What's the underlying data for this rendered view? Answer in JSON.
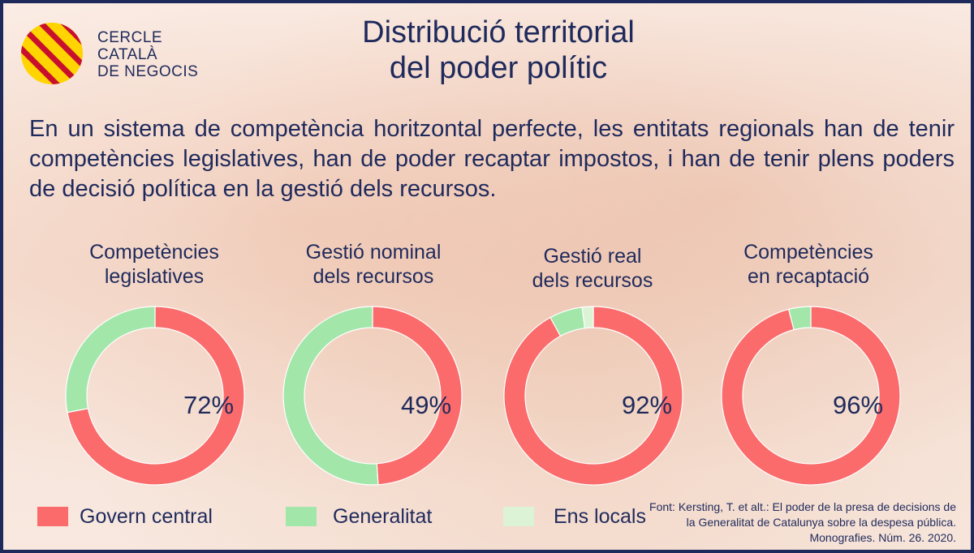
{
  "logo": {
    "lines": [
      "CERCLE",
      "CATALÀ",
      "DE NEGOCIS"
    ]
  },
  "title": {
    "line1": "Distribució territorial",
    "line2": "del poder polític"
  },
  "intro": "En un sistema de competència horitzontal perfecte, les entitats regionals han de tenir competències legislatives, han de poder recaptar impostos, i han de tenir plens poders de decisió política en la gestió dels recursos.",
  "colors": {
    "govern_central": "#fb6b6b",
    "generalitat": "#a3e6aa",
    "ens_locals": "#dcf3d6",
    "text": "#1f2a5c"
  },
  "chart_data": [
    {
      "type": "pie",
      "title": [
        "Competències",
        "legislatives"
      ],
      "label": "72%",
      "values": {
        "Govern central": 72,
        "Generalitat": 28,
        "Ens locals": 0
      }
    },
    {
      "type": "pie",
      "title": [
        "Gestió nominal",
        "dels recursos"
      ],
      "label": "49%",
      "values": {
        "Govern central": 49,
        "Generalitat": 51,
        "Ens locals": 0
      }
    },
    {
      "type": "pie",
      "title": [
        "Gestió real",
        "dels recursos"
      ],
      "label": "92%",
      "values": {
        "Govern central": 92,
        "Generalitat": 6,
        "Ens locals": 2
      }
    },
    {
      "type": "pie",
      "title": [
        "Competències",
        "en recaptació"
      ],
      "label": "96%",
      "values": {
        "Govern central": 96,
        "Generalitat": 4,
        "Ens locals": 0
      }
    }
  ],
  "legend": [
    {
      "label": "Govern central",
      "color": "#fb6b6b"
    },
    {
      "label": "Generalitat",
      "color": "#a3e6aa"
    },
    {
      "label": "Ens locals",
      "color": "#dcf3d6"
    }
  ],
  "source": {
    "line1": "Font: Kersting, T. et alt.: El poder de la presa de decisions de",
    "line2": "la Generalitat de Catalunya sobre la despesa pública.",
    "line3": "Monografies. Núm. 26. 2020."
  }
}
